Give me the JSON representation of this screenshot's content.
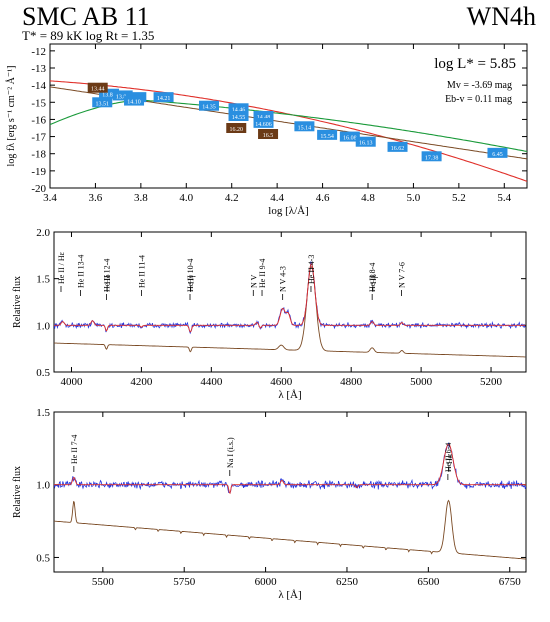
{
  "header": {
    "title": "SMC AB 11",
    "spectral_type": "WN4h",
    "params": "T* =  89 kK  log Rt = 1.35",
    "lum": "log L* =  5.85",
    "mv": "Mv = -3.69 mag",
    "ebv": "Eb-v = 0.11 mag"
  },
  "colors": {
    "model_red": "#e0302a",
    "model_green": "#1a9a3a",
    "brown": "#7a4a24",
    "obs_blue": "#2233dd",
    "marker_blue": "#2a8fe0",
    "marker_brown": "#6b3a16"
  },
  "chart_data": [
    {
      "type": "line",
      "name": "sed",
      "xlabel": "log [λ/Å]",
      "ylabel": "log fλ [erg s⁻¹ cm⁻² Å⁻¹]",
      "xlim": [
        3.4,
        5.5
      ],
      "ylim": [
        -20,
        -11.6
      ],
      "xticks": [
        "3.4",
        "3.6",
        "3.8",
        "4.0",
        "4.2",
        "4.4",
        "4.6",
        "4.8",
        "5.0",
        "5.2",
        "5.4"
      ],
      "yticks": [
        "-12",
        "-13",
        "-14",
        "-15",
        "-16",
        "-17",
        "-18",
        "-19",
        "-20"
      ],
      "markers_blue": [
        {
          "x": 3.66,
          "y": -14.5,
          "label": "13.82"
        },
        {
          "x": 3.72,
          "y": -14.6,
          "label": "13.88"
        },
        {
          "x": 3.78,
          "y": -14.7,
          "label": "13.99"
        },
        {
          "x": 3.63,
          "y": -15.0,
          "label": "13.51"
        },
        {
          "x": 3.77,
          "y": -14.9,
          "label": "14.10"
        },
        {
          "x": 3.9,
          "y": -14.7,
          "label": "14.21"
        },
        {
          "x": 4.1,
          "y": -15.2,
          "label": "14.35"
        },
        {
          "x": 4.23,
          "y": -15.35,
          "label": "14.46"
        },
        {
          "x": 4.23,
          "y": -15.8,
          "label": "14.55"
        },
        {
          "x": 4.34,
          "y": -15.8,
          "label": "14.48"
        },
        {
          "x": 4.34,
          "y": -16.2,
          "label": "14.606"
        },
        {
          "x": 4.52,
          "y": -16.4,
          "label": "15.14"
        },
        {
          "x": 4.62,
          "y": -16.9,
          "label": "15.54"
        },
        {
          "x": 4.72,
          "y": -17.0,
          "label": "16.08"
        },
        {
          "x": 4.79,
          "y": -17.3,
          "label": "16.13"
        },
        {
          "x": 4.93,
          "y": -17.6,
          "label": "16.62"
        },
        {
          "x": 5.08,
          "y": -18.15,
          "label": "17.38"
        },
        {
          "x": 5.37,
          "y": -17.95,
          "label": "6.45"
        }
      ],
      "markers_brown": [
        {
          "x": 3.61,
          "y": -14.15,
          "label": "13.44"
        },
        {
          "x": 4.22,
          "y": -16.5,
          "label": "16.20"
        },
        {
          "x": 4.36,
          "y": -16.85,
          "label": "16.5"
        }
      ],
      "annotations": [
        "log L* =  5.85",
        "Mv = -3.69 mag",
        "Eb-v = 0.11 mag"
      ]
    },
    {
      "type": "line",
      "name": "blue-spectrum",
      "xlabel": "λ [Å]",
      "ylabel": "Relative flux",
      "xlim": [
        3950,
        5300
      ],
      "ylim": [
        0.5,
        2.0
      ],
      "xticks": [
        "4000",
        "4200",
        "4400",
        "4600",
        "4800",
        "5000",
        "5200"
      ],
      "yticks": [
        "0.5",
        "1.0",
        "1.5",
        "2.0"
      ],
      "lines": [
        {
          "x": 3970,
          "label": "He II / Hε"
        },
        {
          "x": 4026,
          "label": "He II 13-4"
        },
        {
          "x": 4100,
          "label": "He II 12-4"
        },
        {
          "x": 4102,
          "label": "Hδ"
        },
        {
          "x": 4200,
          "label": "He II 11-4"
        },
        {
          "x": 4339,
          "label": "He II 10-4"
        },
        {
          "x": 4341,
          "label": "Hγ"
        },
        {
          "x": 4545,
          "label": "He II 9-4"
        },
        {
          "x": 4604,
          "label": "N V 4-3"
        },
        {
          "x": 4685,
          "label": "He II 4-3"
        },
        {
          "x": 4520,
          "label": "N V"
        },
        {
          "x": 4860,
          "label": "He II 8-4"
        },
        {
          "x": 4862,
          "label": "Hβ"
        },
        {
          "x": 4944,
          "label": "N V 7-6"
        }
      ]
    },
    {
      "type": "line",
      "name": "red-spectrum",
      "xlabel": "λ [Å]",
      "ylabel": "Relative flux",
      "xlim": [
        5350,
        6800
      ],
      "ylim": [
        0.4,
        1.5
      ],
      "xticks": [
        "5500",
        "5750",
        "6000",
        "6250",
        "6500",
        "6750"
      ],
      "yticks": [
        "0.5",
        "1.0",
        "1.5"
      ],
      "lines": [
        {
          "x": 5411,
          "label": "He II 7-4"
        },
        {
          "x": 5890,
          "label": "Na I (i.s.)"
        },
        {
          "x": 6560,
          "label": "He II 6-4"
        },
        {
          "x": 6563,
          "label": "Hα"
        }
      ]
    }
  ]
}
